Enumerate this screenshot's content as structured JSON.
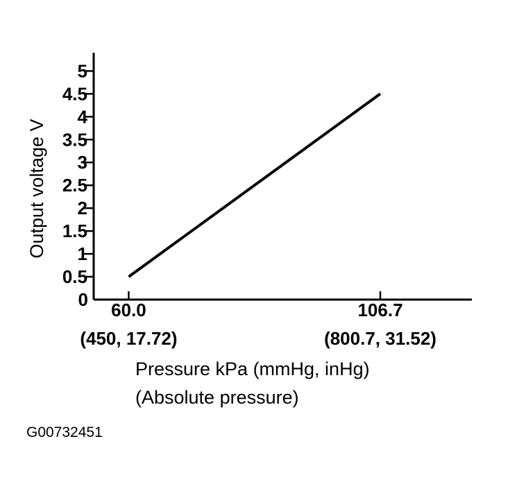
{
  "chart_data": {
    "type": "line",
    "xlabel": [
      "Pressure kPa (mmHg, inHg)",
      "(Absolute pressure)"
    ],
    "ylabel": "Output voltage V",
    "x_tick_labels": [
      {
        "value": 60.0,
        "lines": [
          "60.0",
          "(450, 17.72)"
        ]
      },
      {
        "value": 106.7,
        "lines": [
          "106.7",
          "(800.7, 31.52)"
        ]
      }
    ],
    "y_ticks": [
      "0",
      "0.5",
      "1",
      "1.5",
      "2",
      "2.5",
      "3",
      "3.5",
      "4",
      "4.5",
      "5"
    ],
    "ylim": [
      0,
      5.4
    ],
    "xlim": [
      53.5,
      123.7
    ],
    "grid": false,
    "series": [
      {
        "x": [
          60.0,
          106.7
        ],
        "y": [
          0.5,
          4.5
        ]
      }
    ]
  },
  "figure_id": "G00732451"
}
